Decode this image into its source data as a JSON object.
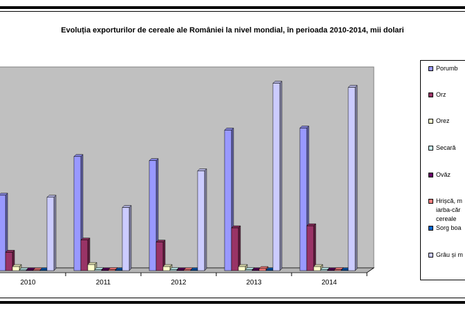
{
  "chart_data": {
    "type": "bar",
    "title": "Evoluția exporturilor de cereale ale României la nivel mondial, în perioada 2010-2014, mii dolari",
    "categories": [
      "2010",
      "2011",
      "2012",
      "2013",
      "2014"
    ],
    "ylim": [
      0,
      100
    ],
    "grid": false,
    "legend": "right",
    "series": [
      {
        "name": "Porumb",
        "color": "#9999ff",
        "values": [
          37,
          56,
          54,
          69,
          70
        ]
      },
      {
        "name": "Orz",
        "color": "#993366",
        "values": [
          9,
          15,
          14,
          21,
          22
        ]
      },
      {
        "name": "Orez",
        "color": "#ffffcc",
        "values": [
          2,
          3,
          2,
          2,
          2
        ]
      },
      {
        "name": "Secară",
        "color": "#ccffff",
        "values": [
          0.3,
          0.5,
          0.5,
          0.5,
          0.5
        ]
      },
      {
        "name": "Ovăz",
        "color": "#660066",
        "values": [
          0.2,
          0.3,
          0.3,
          0.3,
          0.3
        ]
      },
      {
        "name": "Hrișcă, m\niarba-căr\ncereale",
        "color": "#ff8080",
        "values": [
          0.3,
          0.5,
          0.4,
          1,
          0.5
        ]
      },
      {
        "name": "Sorg boa",
        "color": "#0066cc",
        "values": [
          0.2,
          0.3,
          0.3,
          0.3,
          0.3
        ]
      },
      {
        "name": "Grâu și m",
        "color": "#ccccff",
        "values": [
          36,
          31,
          49,
          92,
          90
        ]
      }
    ]
  }
}
